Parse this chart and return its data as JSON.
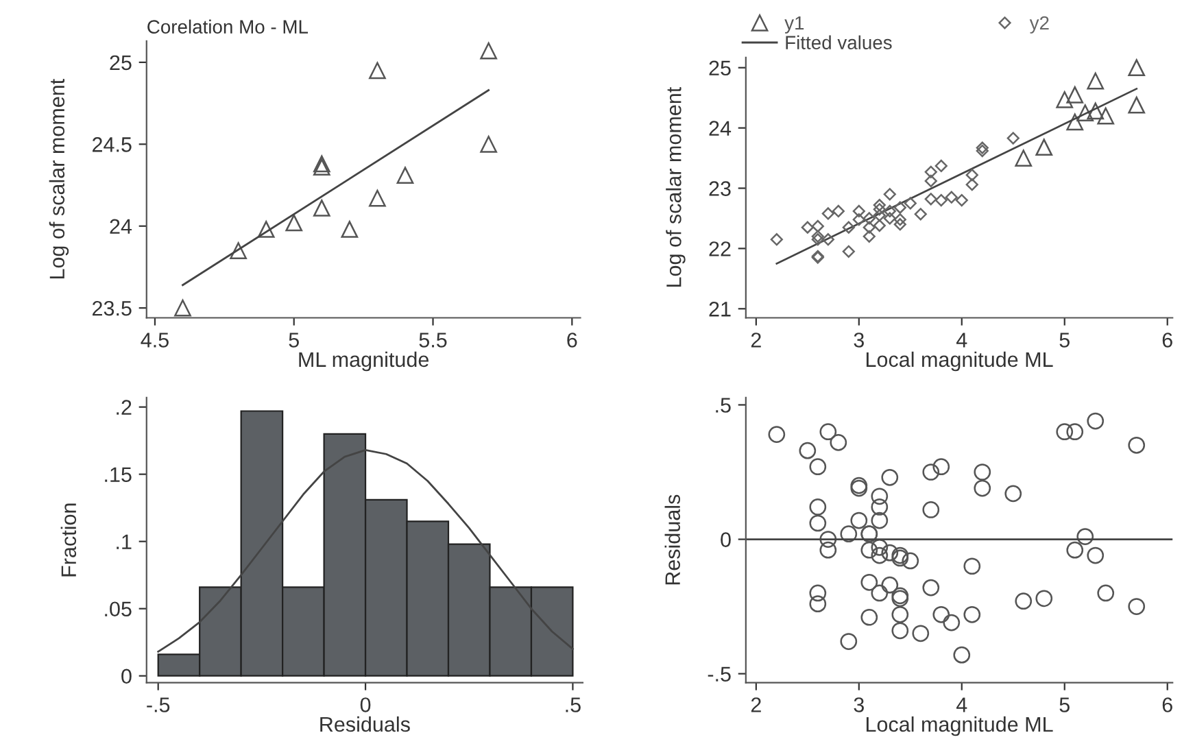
{
  "chart_data": [
    {
      "type": "scatter",
      "title": "Corelation Mo - ML",
      "xlabel": "ML magnitude",
      "ylabel": "Log of scalar moment",
      "xlim": [
        4.47,
        6.03
      ],
      "ylim": [
        23.44,
        25.13
      ],
      "xticks": [
        4.5,
        5,
        5.5,
        6
      ],
      "yticks": [
        23.5,
        24,
        24.5,
        25
      ],
      "grid": false,
      "legend": false,
      "series": [
        {
          "marker": "triangle",
          "color": "#555555",
          "x": [
            4.6,
            4.8,
            4.9,
            5.0,
            5.1,
            5.1,
            5.1,
            5.2,
            5.3,
            5.3,
            5.4,
            5.7,
            5.7
          ],
          "values": [
            23.5,
            23.85,
            23.98,
            24.02,
            24.38,
            24.36,
            24.11,
            23.98,
            24.95,
            24.17,
            24.31,
            25.07,
            24.5
          ]
        },
        {
          "type": "line",
          "color": "#444444",
          "x": [
            4.6,
            5.7
          ],
          "values": [
            23.64,
            24.83
          ]
        }
      ]
    },
    {
      "type": "scatter",
      "xlabel": "Local magnitude ML",
      "ylabel": "Log of scalar moment",
      "xlim": [
        1.9,
        6.05
      ],
      "ylim": [
        20.85,
        25.17
      ],
      "xticks": [
        2,
        3,
        4,
        5,
        6
      ],
      "yticks": [
        21,
        22,
        23,
        24,
        25
      ],
      "grid": false,
      "legend": "top",
      "series": [
        {
          "name": "y1",
          "marker": "triangle",
          "color": "#555555",
          "x": [
            4.6,
            4.8,
            5.0,
            5.1,
            5.1,
            5.2,
            5.3,
            5.3,
            5.4,
            5.7,
            5.7
          ],
          "values": [
            23.5,
            23.68,
            24.47,
            24.55,
            24.1,
            24.25,
            24.78,
            24.28,
            24.2,
            25.0,
            24.38
          ]
        },
        {
          "type": "line",
          "name": "Fitted values",
          "color": "#444444",
          "x": [
            2.2,
            5.7
          ],
          "values": [
            21.75,
            24.65
          ]
        },
        {
          "name": "y2",
          "marker": "diamond",
          "color": "#666666",
          "x": [
            2.2,
            2.5,
            2.6,
            2.6,
            2.6,
            2.6,
            2.6,
            2.7,
            2.7,
            2.8,
            2.9,
            2.9,
            3.0,
            3.0,
            3.1,
            3.1,
            3.1,
            3.2,
            3.2,
            3.2,
            3.2,
            3.3,
            3.3,
            3.3,
            3.4,
            3.4,
            3.4,
            3.5,
            3.6,
            3.7,
            3.7,
            3.7,
            3.8,
            3.8,
            3.9,
            4.0,
            4.1,
            4.1,
            4.2,
            4.2,
            4.5
          ],
          "values": [
            22.15,
            22.35,
            22.37,
            22.2,
            22.15,
            21.87,
            21.85,
            22.58,
            22.15,
            22.62,
            22.35,
            21.95,
            22.62,
            22.48,
            22.5,
            22.35,
            22.2,
            22.72,
            22.65,
            22.55,
            22.38,
            22.9,
            22.62,
            22.5,
            22.68,
            22.48,
            22.4,
            22.75,
            22.57,
            23.27,
            23.12,
            22.82,
            23.37,
            22.8,
            22.85,
            22.8,
            23.22,
            23.06,
            23.67,
            23.62,
            23.83
          ]
        }
      ]
    },
    {
      "type": "histogram",
      "xlabel": "Residuals",
      "ylabel": "Fraction",
      "xlim": [
        -0.528,
        0.524
      ],
      "ylim": [
        -0.005,
        0.207
      ],
      "xticks": [
        {
          "value": -0.5,
          "label": "-.5"
        },
        0,
        {
          "value": 0.5,
          "label": ".5"
        }
      ],
      "yticks": [
        0,
        {
          "value": 0.05,
          "label": ".05"
        },
        {
          "value": 0.1,
          "label": ".1"
        },
        {
          "value": 0.15,
          "label": ".15"
        },
        {
          "value": 0.2,
          "label": ".2"
        }
      ],
      "grid": false,
      "legend": false,
      "series": [
        {
          "color": "#5c6064",
          "bins": [
            -0.5,
            -0.4,
            -0.3,
            -0.2,
            -0.1,
            0,
            0.1,
            0.2,
            0.3,
            0.4,
            0.5
          ],
          "values": [
            0.016,
            0.066,
            0.197,
            0.066,
            0.18,
            0.131,
            0.115,
            0.098,
            0.066,
            0.066
          ]
        },
        {
          "type": "line",
          "color": "#444444",
          "x": [
            -0.5,
            -0.45,
            -0.4,
            -0.35,
            -0.3,
            -0.25,
            -0.2,
            -0.15,
            -0.1,
            -0.05,
            0,
            0.05,
            0.1,
            0.15,
            0.2,
            0.25,
            0.3,
            0.35,
            0.4,
            0.45,
            0.5
          ],
          "values": [
            0.018,
            0.028,
            0.04,
            0.056,
            0.075,
            0.095,
            0.115,
            0.135,
            0.152,
            0.163,
            0.168,
            0.165,
            0.158,
            0.145,
            0.128,
            0.11,
            0.09,
            0.07,
            0.05,
            0.033,
            0.02
          ]
        }
      ]
    },
    {
      "type": "scatter",
      "xlabel": "Local magnitude ML",
      "ylabel": "Residuals",
      "xlim": [
        1.9,
        6.05
      ],
      "ylim": [
        -0.533,
        0.527
      ],
      "xticks": [
        2,
        3,
        4,
        5,
        6
      ],
      "yticks": [
        {
          "value": -0.5,
          "label": "-.5"
        },
        0,
        {
          "value": 0.5,
          "label": ".5"
        }
      ],
      "grid": false,
      "legend": false,
      "ref_lines": [
        {
          "axis": "y",
          "value": 0,
          "color": "#444444"
        }
      ],
      "series": [
        {
          "marker": "circle",
          "color": "#555555",
          "x": [
            2.2,
            2.5,
            2.7,
            2.8,
            2.6,
            3.0,
            3.0,
            3.3,
            3.2,
            3.2,
            2.6,
            2.6,
            3.0,
            3.2,
            2.9,
            3.1,
            3.1,
            2.7,
            2.7,
            3.1,
            3.2,
            3.2,
            3.3,
            3.4,
            3.4,
            3.5,
            3.7,
            3.8,
            3.7,
            4.2,
            4.2,
            4.5,
            4.1,
            2.6,
            2.6,
            3.1,
            3.2,
            3.3,
            3.4,
            3.4,
            3.7,
            3.1,
            3.4,
            3.4,
            3.6,
            2.9,
            3.8,
            3.9,
            4.1,
            4.0,
            4.6,
            4.8,
            5.0,
            5.1,
            5.3,
            5.7,
            5.2,
            5.1,
            5.3,
            5.4,
            5.7
          ],
          "values": [
            0.39,
            0.33,
            0.4,
            0.36,
            0.27,
            0.2,
            0.19,
            0.23,
            0.16,
            0.12,
            0.12,
            0.06,
            0.07,
            0.07,
            0.02,
            0.02,
            0.02,
            0.0,
            -0.04,
            -0.04,
            -0.03,
            -0.06,
            -0.05,
            -0.06,
            -0.07,
            -0.08,
            0.25,
            0.27,
            0.11,
            0.25,
            0.19,
            0.17,
            -0.1,
            -0.2,
            -0.24,
            -0.16,
            -0.2,
            -0.17,
            -0.21,
            -0.22,
            -0.18,
            -0.29,
            -0.28,
            -0.34,
            -0.35,
            -0.38,
            -0.28,
            -0.31,
            -0.28,
            -0.43,
            -0.23,
            -0.22,
            0.4,
            0.4,
            0.44,
            0.35,
            0.01,
            -0.04,
            -0.06,
            -0.2,
            -0.25
          ]
        }
      ]
    }
  ]
}
